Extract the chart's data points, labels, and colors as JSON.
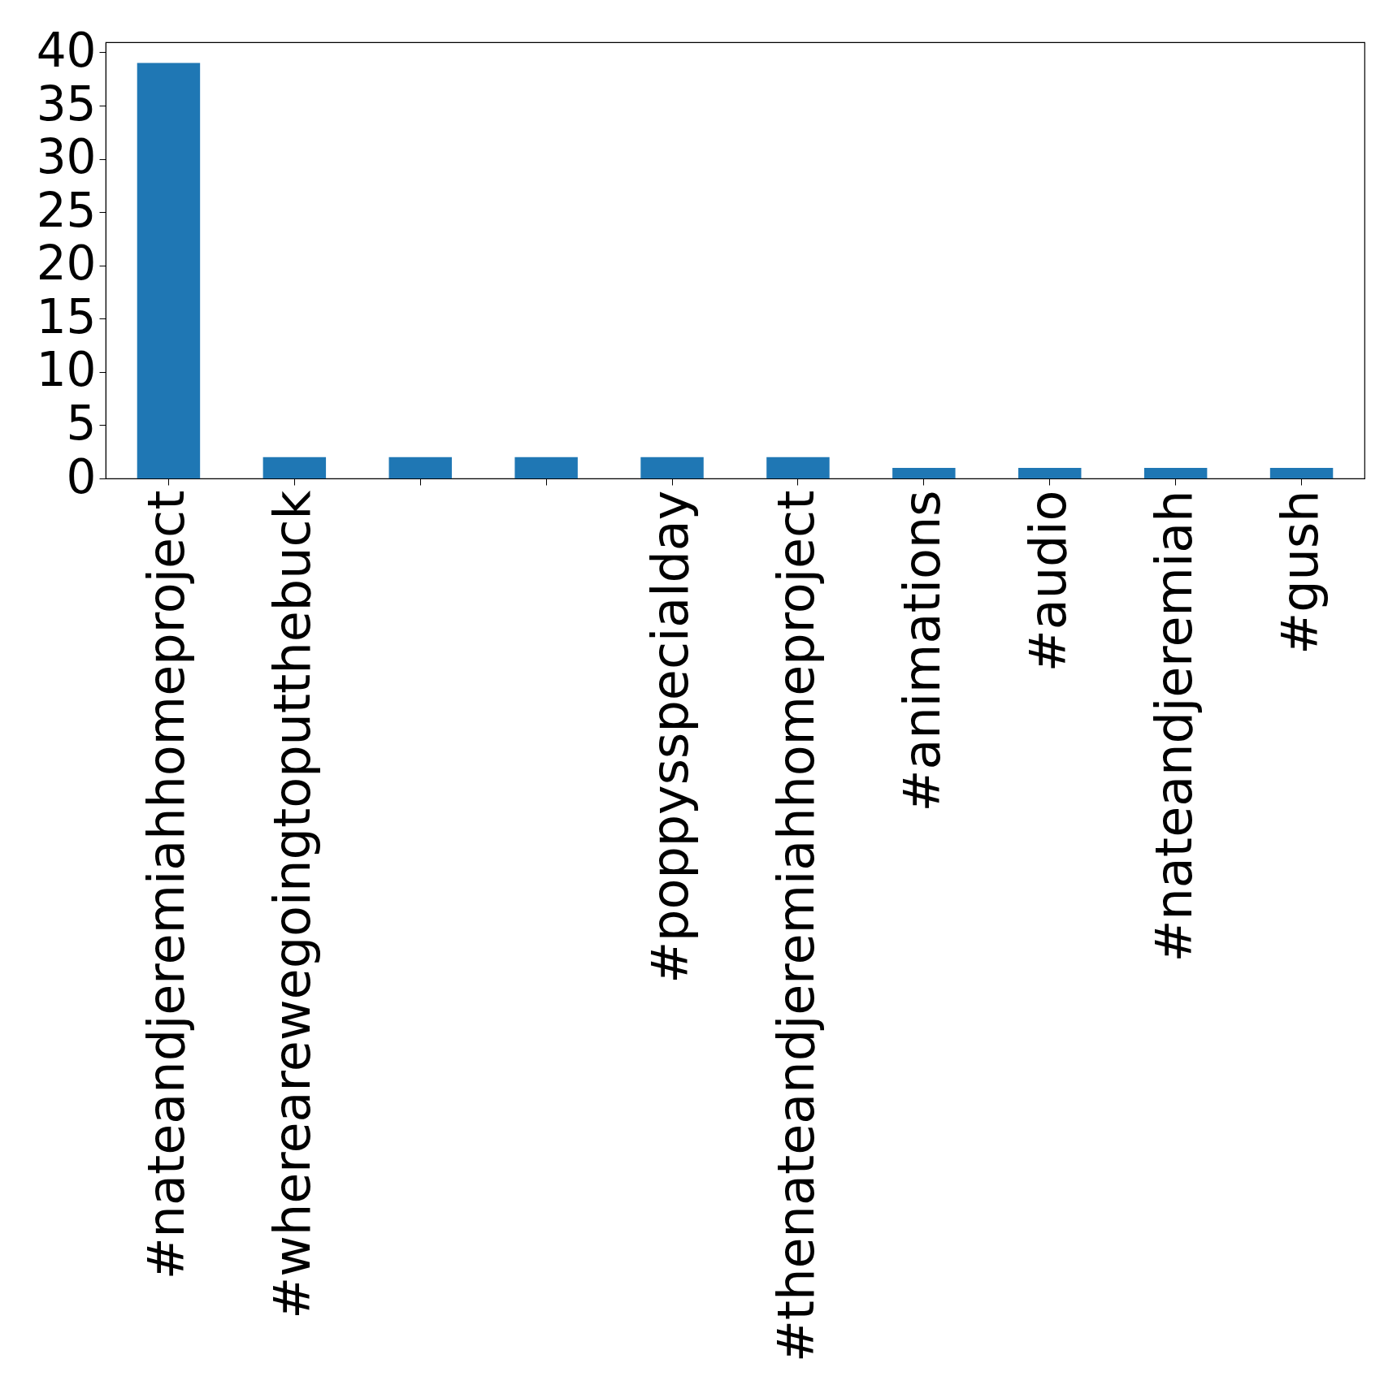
{
  "chart_data": {
    "type": "bar",
    "categories": [
      "#nateandjeremiahhomeproject",
      "#wherearewegoingtoputthebuck",
      null,
      null,
      "#poppysspecialday",
      "#thenateandjeremiahhomeproject",
      "#animations",
      "#audio",
      "#nateandjeremiah",
      "#gush"
    ],
    "values": [
      39,
      2,
      2,
      2,
      2,
      2,
      1,
      1,
      1,
      1
    ],
    "color": "#1f77b4",
    "ylim": [
      0,
      40.95
    ],
    "yticks": [
      0,
      5,
      10,
      15,
      20,
      25,
      30,
      35,
      40
    ],
    "grid": false
  }
}
